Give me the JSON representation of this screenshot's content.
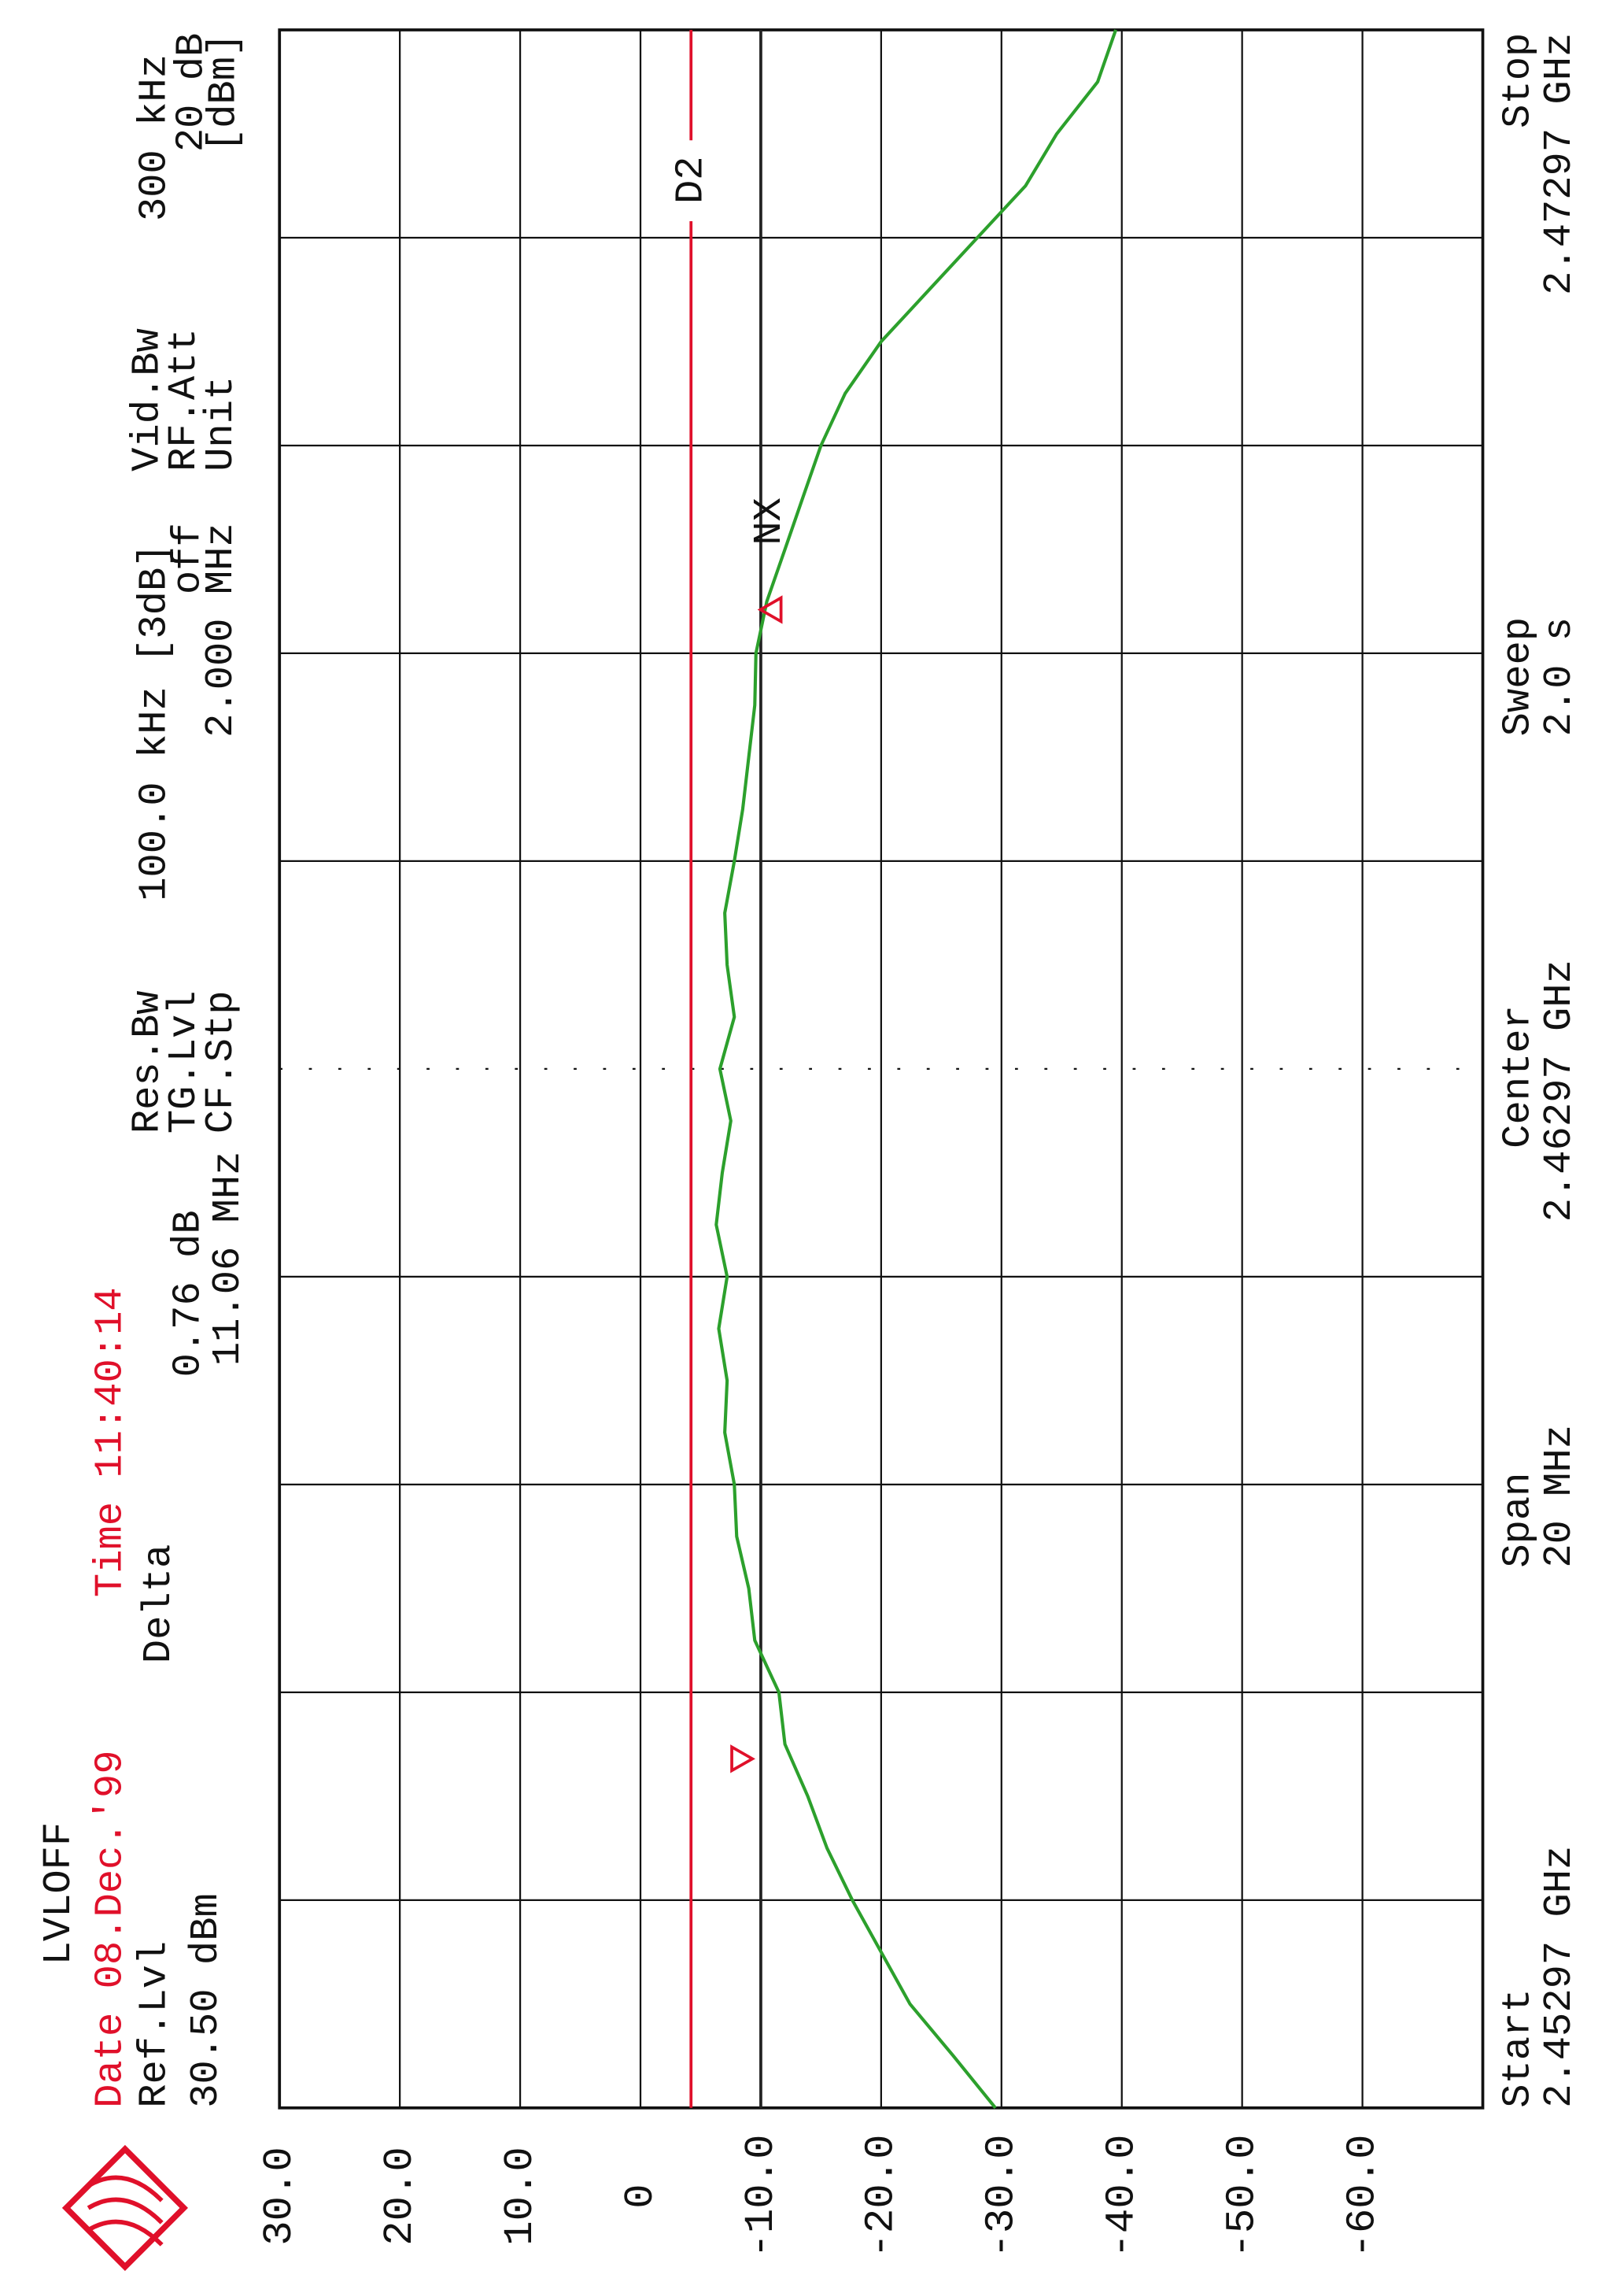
{
  "chart_data": {
    "type": "line",
    "info": {
      "lvloff": "LVLOFF",
      "date": "Date 08.Dec.'99",
      "time": "Time 11:40:14",
      "ref_lvl_label": "Ref.Lvl",
      "ref_lvl": "30.50 dBm",
      "delta_label": "Delta",
      "delta_level": "0.76 dB",
      "delta_freq": "11.06 MHz",
      "res_bw_label": "Res.Bw",
      "res_bw": "100.0 kHz [3dB]",
      "tg_lvl_label": "TG.Lvl",
      "tg_lvl": "off",
      "cf_stp_label": "CF.Stp",
      "cf_stp": "2.000 MHz",
      "vid_bw_label": "Vid.Bw",
      "vid_bw": "300 kHz",
      "rf_att_label": "RF.Att",
      "rf_att": "20 dB",
      "unit_label": "Unit",
      "unit": "[dBm]",
      "start_label": "Start",
      "start": "2.45297 GHz",
      "span_label": "Span",
      "span": "20 MHz",
      "center_label": "Center",
      "center": "2.46297 GHz",
      "sweep_label": "Sweep",
      "sweep": "2.0 s",
      "stop_label": "Stop",
      "stop": "2.47297 GHz"
    },
    "x": [
      2.45297,
      2.45347,
      2.45397,
      2.45447,
      2.45497,
      2.45547,
      2.45597,
      2.45647,
      2.45697,
      2.45747,
      2.45797,
      2.45847,
      2.45897,
      2.45947,
      2.45997,
      2.46047,
      2.46097,
      2.46147,
      2.46197,
      2.46247,
      2.46297,
      2.46347,
      2.46397,
      2.46447,
      2.46497,
      2.46547,
      2.46597,
      2.46647,
      2.46697,
      2.46747,
      2.46797,
      2.46847,
      2.46897,
      2.46947,
      2.46997,
      2.47047,
      2.47097,
      2.47147,
      2.47197,
      2.47247,
      2.47297
    ],
    "values": [
      -29.5,
      -26,
      -22.4,
      -20,
      -17.6,
      -15.5,
      -13.9,
      -12,
      -11.5,
      -9.5,
      -9,
      -8,
      -7.8,
      -7,
      -7.2,
      -6.5,
      -7.2,
      -6.3,
      -6.8,
      -7.5,
      -6.6,
      -7.8,
      -7.2,
      -7,
      -7.8,
      -8.5,
      -9,
      -9.5,
      -9.6,
      -10.5,
      -12,
      -13.5,
      -15,
      -17,
      -20,
      -24,
      -28,
      -32,
      -34.6,
      -38,
      -39.5
    ],
    "color": "#2ca02c",
    "xlim": [
      2.45297,
      2.47297
    ],
    "ylim": [
      -70,
      30
    ],
    "yticks": [
      {
        "value": 30,
        "label": "30.0"
      },
      {
        "value": 20,
        "label": "20.0"
      },
      {
        "value": 10,
        "label": "10.0"
      },
      0,
      {
        "value": -10,
        "label": "-10.0"
      },
      {
        "value": -20,
        "label": "-20.0"
      },
      {
        "value": -30,
        "label": "-30.0"
      },
      {
        "value": -40,
        "label": "-40.0"
      },
      {
        "value": -50,
        "label": "-50.0"
      },
      {
        "value": -60,
        "label": "-60.0"
      }
    ],
    "grid": true,
    "lines": [
      {
        "name": "D2",
        "value": -4.2,
        "color": "#e0102a"
      },
      {
        "value": -10,
        "color": "#222222"
      }
    ],
    "markers": [
      {
        "x": 2.45633,
        "value": -9.3,
        "color": "#e0102a"
      },
      {
        "x": 2.46739,
        "value": -8.5,
        "color": "#e0102a"
      }
    ],
    "marker_label": "NX"
  }
}
